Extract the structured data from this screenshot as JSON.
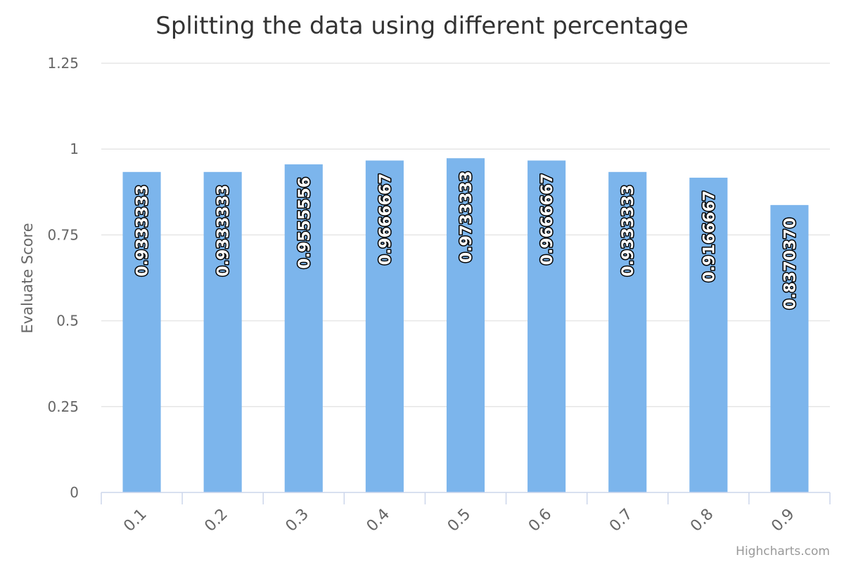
{
  "chart_data": {
    "type": "bar",
    "title": "Splitting the data using different percentage",
    "xlabel": "",
    "ylabel": "Evaluate Score",
    "categories": [
      "0.1",
      "0.2",
      "0.3",
      "0.4",
      "0.5",
      "0.6",
      "0.7",
      "0.8",
      "0.9"
    ],
    "values": [
      0.9333333,
      0.9333333,
      0.9555556,
      0.9666667,
      0.9733333,
      0.9666667,
      0.9333333,
      0.9166667,
      0.837037
    ],
    "data_labels": [
      "0.9333333",
      "0.9333333",
      "0.9555556",
      "0.9666667",
      "0.9733333",
      "0.9666667",
      "0.9333333",
      "0.9166667",
      "0.8370370"
    ],
    "ylim": [
      0,
      1.25
    ],
    "yticks": [
      0,
      0.25,
      0.5,
      0.75,
      1,
      1.25
    ],
    "ytick_labels": [
      "0",
      "0.25",
      "0.5",
      "0.75",
      "1",
      "1.25"
    ],
    "grid": true,
    "legend": false,
    "bar_color": "#7cb5ec",
    "credit": "Highcharts.com"
  }
}
